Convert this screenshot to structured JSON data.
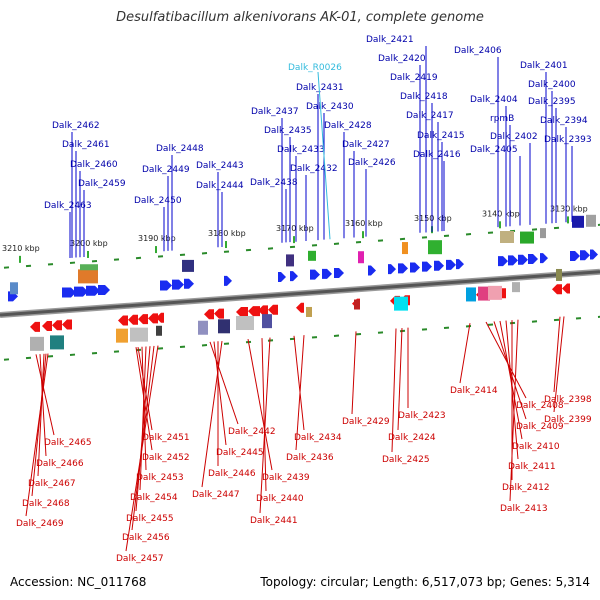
{
  "title": "Desulfatibacillum alkenivorans AK-01, complete genome",
  "footer": {
    "accession": "Accession: NC_011768",
    "topology": "Topology: circular; Length: 6,517,073 bp; Genes: 5,314"
  },
  "colors": {
    "forward_label": "#0000aa",
    "reverse_label": "#cc0000",
    "rna_label": "#33bbdd",
    "forward_arrow": "#1a2cf0",
    "reverse_arrow": "#ee1111",
    "backbone": "#555555",
    "tick_green": "#33aa33"
  },
  "positions": [
    {
      "label": "3210 kbp"
    },
    {
      "label": "3200 kbp"
    },
    {
      "label": "3190 kbp"
    },
    {
      "label": "3180 kbp"
    },
    {
      "label": "3170 kbp"
    },
    {
      "label": "3160 kbp"
    },
    {
      "label": "3150 kbp"
    },
    {
      "label": "3140 kbp"
    },
    {
      "label": "3130 kbp"
    }
  ],
  "forward_genes": [
    "Dalk_2462",
    "Dalk_2461",
    "Dalk_2460",
    "Dalk_2459",
    "Dalk_2463",
    "Dalk_2448",
    "Dalk_2449",
    "Dalk_2450",
    "Dalk_2443",
    "Dalk_2444",
    "Dalk_2437",
    "Dalk_2435",
    "Dalk_2433",
    "Dalk_2438",
    "Dalk_2431",
    "Dalk_2430",
    "Dalk_2432",
    "Dalk_2428",
    "Dalk_2427",
    "Dalk_2426",
    "Dalk_2421",
    "Dalk_2420",
    "Dalk_2419",
    "Dalk_2418",
    "Dalk_2417",
    "Dalk_2415",
    "Dalk_2416",
    "Dalk_2406",
    "Dalk_2404",
    "Dalk_2401",
    "Dalk_2400",
    "Dalk_2395",
    "rpmB",
    "Dalk_2402",
    "Dalk_2394",
    "Dalk_2405",
    "Dalk_2393"
  ],
  "rna_genes": [
    "Dalk_R0026"
  ],
  "reverse_genes": [
    "Dalk_2465",
    "Dalk_2466",
    "Dalk_2467",
    "Dalk_2468",
    "Dalk_2469",
    "Dalk_2451",
    "Dalk_2452",
    "Dalk_2453",
    "Dalk_2454",
    "Dalk_2455",
    "Dalk_2456",
    "Dalk_2457",
    "Dalk_2442",
    "Dalk_2445",
    "Dalk_2446",
    "Dalk_2447",
    "Dalk_2439",
    "Dalk_2440",
    "Dalk_2441",
    "Dalk_2434",
    "Dalk_2436",
    "Dalk_2429",
    "Dalk_2423",
    "Dalk_2424",
    "Dalk_2425",
    "Dalk_2414",
    "Dalk_2408",
    "Dalk_2409",
    "Dalk_2410",
    "Dalk_2411",
    "Dalk_2412",
    "Dalk_2413",
    "Dalk_2398",
    "Dalk_2399"
  ]
}
